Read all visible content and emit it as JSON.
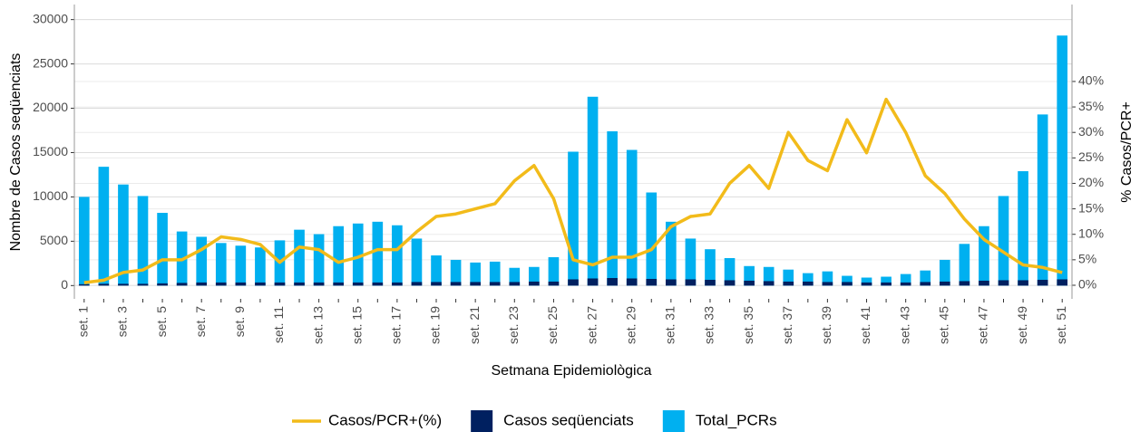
{
  "chart_data": {
    "type": "bar",
    "x_label": "Setmana Epidemiològica",
    "y_label": "Nombre de Casos seqüenciats",
    "y2_label": "% Casos/PCR+",
    "categories": [
      "set. 1",
      null,
      "set. 3",
      null,
      "set. 5",
      null,
      "set. 7",
      null,
      "set. 9",
      null,
      "set. 11",
      null,
      "set. 13",
      null,
      "set. 15",
      null,
      "set. 17",
      null,
      "set. 19",
      null,
      "set. 21",
      null,
      "set. 23",
      null,
      "set. 25",
      null,
      "set. 27",
      null,
      "set. 29",
      null,
      "set. 31",
      null,
      "set. 33",
      null,
      "set. 35",
      null,
      "set. 37",
      null,
      "set. 39",
      null,
      "set. 41",
      null,
      "set. 43",
      null,
      "set. 45",
      null,
      "set. 47",
      null,
      "set. 49",
      null,
      "set. 51"
    ],
    "series": [
      {
        "name": "Casos/PCR+(%)",
        "type": "line",
        "axis": "y2",
        "color": "#f2bb1a",
        "values": [
          0.5,
          1,
          2.5,
          3,
          5,
          5,
          7,
          9.5,
          9,
          8,
          4.5,
          7.5,
          7,
          4.5,
          5.5,
          7,
          7,
          10.5,
          13.5,
          14,
          15,
          16,
          20.5,
          23.5,
          17,
          5,
          4,
          5.5,
          5.5,
          7,
          11.5,
          13.5,
          14,
          20,
          23.5,
          19,
          30,
          24.5,
          22.5,
          32.5,
          26,
          36.5,
          30,
          21.5,
          18,
          13,
          9,
          6.5,
          4,
          3.5,
          2.5
        ]
      },
      {
        "name": "Casos seqüenciats",
        "type": "bar",
        "color": "#002060",
        "values": [
          150,
          200,
          200,
          200,
          250,
          300,
          350,
          350,
          350,
          350,
          350,
          350,
          350,
          350,
          350,
          350,
          350,
          400,
          400,
          400,
          400,
          400,
          400,
          450,
          450,
          700,
          800,
          850,
          800,
          750,
          700,
          700,
          650,
          600,
          550,
          500,
          450,
          450,
          400,
          400,
          350,
          350,
          350,
          400,
          450,
          500,
          550,
          600,
          600,
          650,
          700
        ]
      },
      {
        "name": "Total_PCRs",
        "type": "bar",
        "color": "#00b0f0",
        "values": [
          10000,
          13400,
          11400,
          10100,
          8200,
          6100,
          5500,
          4800,
          4500,
          4300,
          5100,
          6300,
          5800,
          6700,
          7000,
          7200,
          6800,
          5300,
          3400,
          2900,
          2600,
          2700,
          2000,
          2100,
          3200,
          15100,
          21300,
          17400,
          15300,
          10500,
          7200,
          5300,
          4100,
          3100,
          2200,
          2100,
          1800,
          1400,
          1600,
          1100,
          900,
          1000,
          1300,
          1700,
          2900,
          4700,
          6700,
          10100,
          12900,
          19300,
          28200
        ]
      }
    ],
    "ylim": [
      -1500,
      31700
    ],
    "yticks": [
      0,
      5000,
      10000,
      15000,
      20000,
      25000,
      30000
    ],
    "y2lim": [
      -2.67,
      55.1
    ],
    "y2ticks": [
      {
        "value": 0,
        "label": "0%"
      },
      {
        "value": 5,
        "label": "5%"
      },
      {
        "value": 10,
        "label": "10%"
      },
      {
        "value": 15,
        "label": "15%"
      },
      {
        "value": 20,
        "label": "20%"
      },
      {
        "value": 25,
        "label": "25%"
      },
      {
        "value": 30,
        "label": "30%"
      },
      {
        "value": 35,
        "label": "35%"
      },
      {
        "value": 40,
        "label": "40%"
      }
    ],
    "grid": true,
    "legend": "bottom"
  }
}
